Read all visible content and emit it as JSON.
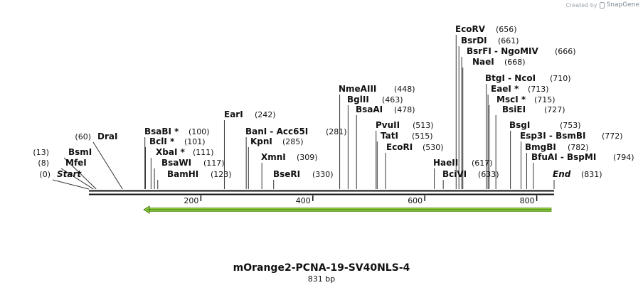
{
  "credit": {
    "prefix": "Created by",
    "brand": "SnapGene"
  },
  "title": "mOrange2-PCNA-19-SV40NLS-4",
  "subtitle": "831 bp",
  "sequence_length": 831,
  "ruler_ticks": [
    "200",
    "400",
    "600",
    "800"
  ],
  "sites": [
    {
      "name": "Start",
      "pos": "(0)",
      "italic": true
    },
    {
      "name": "MfeI",
      "pos": "(8)"
    },
    {
      "name": "BsmI",
      "pos": "(13)"
    },
    {
      "name": "DraI",
      "pos": "(60)"
    },
    {
      "name": "BsaBI *",
      "pos": "(100)"
    },
    {
      "name": "BclI *",
      "pos": "(101)"
    },
    {
      "name": "XbaI *",
      "pos": "(111)"
    },
    {
      "name": "BsaWI",
      "pos": "(117)"
    },
    {
      "name": "BamHI",
      "pos": "(123)"
    },
    {
      "name": "EarI",
      "pos": "(242)"
    },
    {
      "name": "BanI - Acc65I",
      "pos": "(281)"
    },
    {
      "name": "KpnI",
      "pos": "(285)"
    },
    {
      "name": "XmnI",
      "pos": "(309)"
    },
    {
      "name": "BseRI",
      "pos": "(330)"
    },
    {
      "name": "NmeAIII",
      "pos": "(448)"
    },
    {
      "name": "BglII",
      "pos": "(463)"
    },
    {
      "name": "BsaAI",
      "pos": "(478)"
    },
    {
      "name": "PvuII",
      "pos": "(513)"
    },
    {
      "name": "TatI",
      "pos": "(515)"
    },
    {
      "name": "EcoRI",
      "pos": "(530)"
    },
    {
      "name": "HaeII",
      "pos": "(617)"
    },
    {
      "name": "BciVI",
      "pos": "(633)"
    },
    {
      "name": "EcoRV",
      "pos": "(656)"
    },
    {
      "name": "BsrDI",
      "pos": "(661)"
    },
    {
      "name": "BsrFI - NgoMIV",
      "pos": "(666)"
    },
    {
      "name": "NaeI",
      "pos": "(668)"
    },
    {
      "name": "BtgI - NcoI",
      "pos": "(710)"
    },
    {
      "name": "EaeI *",
      "pos": "(713)"
    },
    {
      "name": "MscI *",
      "pos": "(715)"
    },
    {
      "name": "BsiEI",
      "pos": "(727)"
    },
    {
      "name": "BsgI",
      "pos": "(753)"
    },
    {
      "name": "Esp3I - BsmBI",
      "pos": "(772)"
    },
    {
      "name": "BmgBI",
      "pos": "(782)"
    },
    {
      "name": "BfuAI - BspMI",
      "pos": "(794)"
    },
    {
      "name": "End",
      "pos": "(831)",
      "italic": true
    }
  ],
  "feature": {
    "direction": "reverse",
    "start": 131,
    "end": 831,
    "color": "#8ecf3c"
  }
}
